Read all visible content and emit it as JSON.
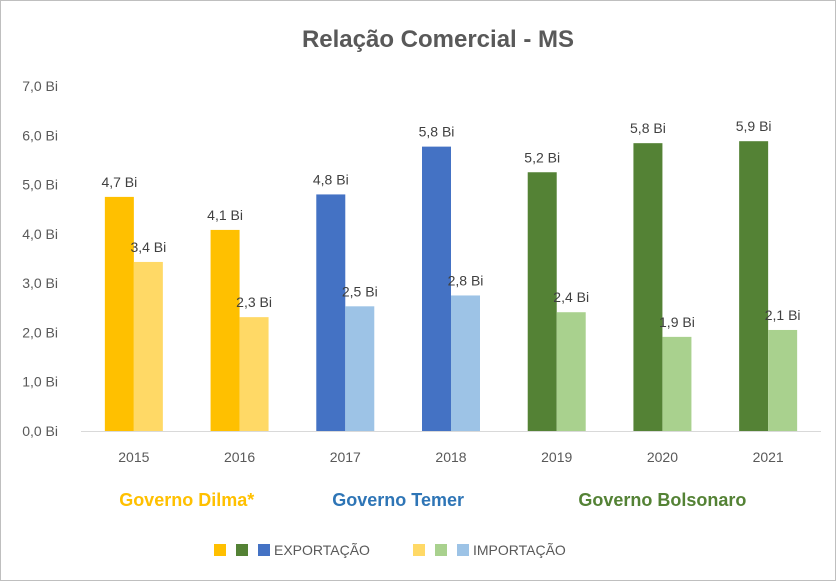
{
  "chart_data": {
    "type": "bar",
    "title": "Relação Comercial - MS",
    "categories": [
      "2015",
      "2016",
      "2017",
      "2018",
      "2019",
      "2020",
      "2021"
    ],
    "series": [
      {
        "name": "EXPORTAÇÃO",
        "values": [
          4.75,
          4.08,
          4.8,
          5.77,
          5.25,
          5.84,
          5.88
        ],
        "labels": [
          "4,7 Bi",
          "4,1 Bi",
          "4,8 Bi",
          "5,8 Bi",
          "5,2 Bi",
          "5,8 Bi",
          "5,9 Bi"
        ],
        "colors": [
          "#FFC000",
          "#FFC000",
          "#4472C4",
          "#4472C4",
          "#548235",
          "#548235",
          "#548235"
        ]
      },
      {
        "name": "IMPORTAÇÃO",
        "values": [
          3.43,
          2.31,
          2.53,
          2.75,
          2.41,
          1.91,
          2.05
        ],
        "labels": [
          "3,4 Bi",
          "2,3 Bi",
          "2,5 Bi",
          "2,8 Bi",
          "2,4 Bi",
          "1,9 Bi",
          "2,1 Bi"
        ],
        "colors": [
          "#FFD966",
          "#FFD966",
          "#9DC3E6",
          "#9DC3E6",
          "#A9D18E",
          "#A9D18E",
          "#A9D18E"
        ]
      }
    ],
    "ylim": [
      0,
      7
    ],
    "yticks": [
      0,
      1,
      2,
      3,
      4,
      5,
      6,
      7
    ],
    "ytick_labels": [
      "0,0 Bi",
      "1,0 Bi",
      "2,0 Bi",
      "3,0 Bi",
      "4,0 Bi",
      "5,0 Bi",
      "6,0 Bi",
      "7,0 Bi"
    ],
    "grid": false,
    "legend_position": "bottom",
    "legend": {
      "export_swatches": [
        "#FFC000",
        "#548235",
        "#4472C4"
      ],
      "import_swatches": [
        "#FFD966",
        "#A9D18E",
        "#9DC3E6"
      ]
    },
    "annotations": [
      {
        "text": "Governo Dilma*",
        "color": "#FFC000",
        "years": [
          "2015",
          "2016"
        ]
      },
      {
        "text": "Governo Temer",
        "color": "#2E75B6",
        "years": [
          "2017",
          "2018"
        ]
      },
      {
        "text": "Governo Bolsonaro",
        "color": "#548235",
        "years": [
          "2019",
          "2020",
          "2021"
        ]
      }
    ]
  }
}
